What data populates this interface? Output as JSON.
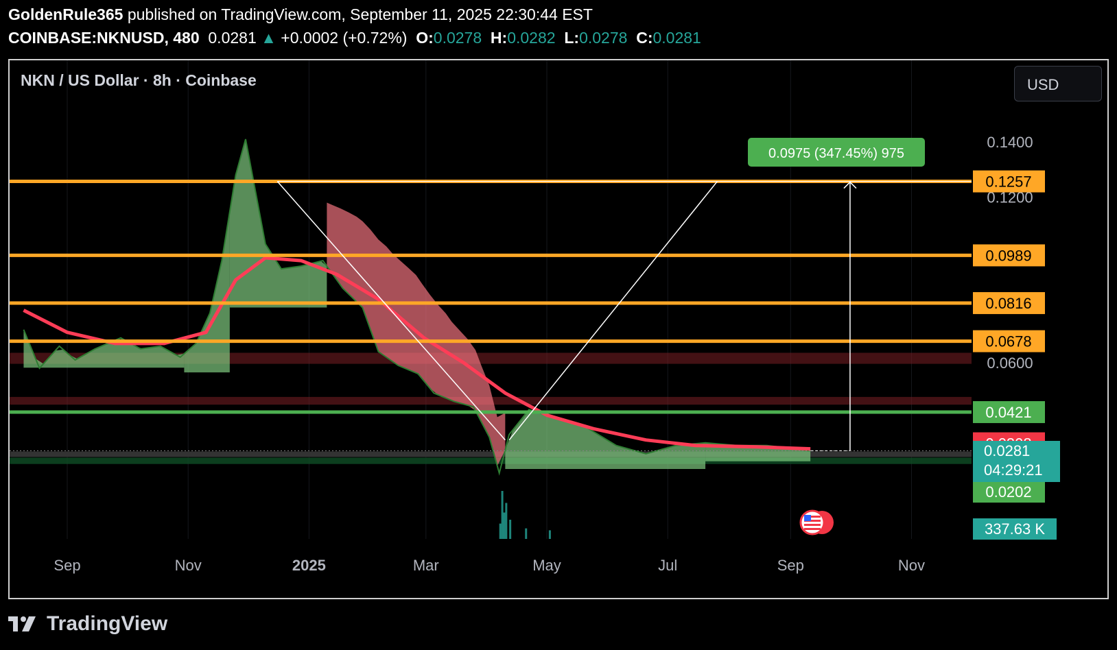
{
  "header": {
    "author": "GoldenRule365",
    "published": "published on TradingView.com, September 11, 2025 22:30:44 EST",
    "symbol": "COINBASE:NKNUSD, 480",
    "last": "0.0281",
    "change": "+0.0002 (+0.72%)",
    "o_label": "O:",
    "o": "0.0278",
    "h_label": "H:",
    "h": "0.0282",
    "l_label": "L:",
    "l": "0.0278",
    "c_label": "C:",
    "c": "0.0281"
  },
  "symbol_title": "NKN / US Dollar · 8h · Coinbase",
  "currency_button": "USD",
  "footer": {
    "brand": "TradingView"
  },
  "colors": {
    "bg": "#000000",
    "orange": "#ffa726",
    "green_line": "#4caf50",
    "red_band": "#7a1f24",
    "ma": "#ff3d57",
    "teal": "#26a69a",
    "cloud_green": "#7fc97f",
    "cloud_red": "#f0727e"
  },
  "chart_data": {
    "type": "line",
    "title": "NKN / US Dollar · 8h · Coinbase",
    "x_ticks": [
      "Sep",
      "Nov",
      "2025",
      "Mar",
      "May",
      "Jul",
      "Sep",
      "Nov"
    ],
    "y_ticks": [
      "0.1400",
      "0.1200",
      "0.0600"
    ],
    "ylim": [
      0.017,
      0.148
    ],
    "series": [
      {
        "role": "price",
        "points": [
          [
            "2024-08-10",
            0.072
          ],
          [
            "2024-08-18",
            0.058
          ],
          [
            "2024-08-28",
            0.066
          ],
          [
            "2024-09-05",
            0.061
          ],
          [
            "2024-09-15",
            0.065
          ],
          [
            "2024-09-28",
            0.069
          ],
          [
            "2024-10-08",
            0.065
          ],
          [
            "2024-10-18",
            0.066
          ],
          [
            "2024-10-28",
            0.062
          ],
          [
            "2024-11-05",
            0.067
          ],
          [
            "2024-11-12",
            0.078
          ],
          [
            "2024-11-18",
            0.097
          ],
          [
            "2024-11-25",
            0.128
          ],
          [
            "2024-11-30",
            0.141
          ],
          [
            "2024-12-05",
            0.122
          ],
          [
            "2024-12-10",
            0.103
          ],
          [
            "2024-12-18",
            0.094
          ],
          [
            "2024-12-28",
            0.095
          ],
          [
            "2025-01-08",
            0.097
          ],
          [
            "2025-01-18",
            0.087
          ],
          [
            "2025-01-28",
            0.08
          ],
          [
            "2025-02-05",
            0.064
          ],
          [
            "2025-02-15",
            0.059
          ],
          [
            "2025-02-25",
            0.056
          ],
          [
            "2025-03-05",
            0.049
          ],
          [
            "2025-03-15",
            0.046
          ],
          [
            "2025-03-25",
            0.044
          ],
          [
            "2025-04-02",
            0.033
          ],
          [
            "2025-04-07",
            0.02
          ],
          [
            "2025-04-12",
            0.034
          ],
          [
            "2025-04-22",
            0.043
          ],
          [
            "2025-05-05",
            0.04
          ],
          [
            "2025-05-20",
            0.037
          ],
          [
            "2025-06-05",
            0.03
          ],
          [
            "2025-06-20",
            0.027
          ],
          [
            "2025-07-05",
            0.03
          ],
          [
            "2025-07-20",
            0.031
          ],
          [
            "2025-08-05",
            0.03
          ],
          [
            "2025-08-20",
            0.03
          ],
          [
            "2025-09-11",
            0.0281
          ]
        ]
      },
      {
        "role": "moving-average",
        "points": [
          [
            "2024-08-10",
            0.079
          ],
          [
            "2024-09-01",
            0.071
          ],
          [
            "2024-09-25",
            0.067
          ],
          [
            "2024-10-20",
            0.067
          ],
          [
            "2024-11-10",
            0.071
          ],
          [
            "2024-11-25",
            0.09
          ],
          [
            "2024-12-10",
            0.098
          ],
          [
            "2024-12-28",
            0.097
          ],
          [
            "2025-01-15",
            0.092
          ],
          [
            "2025-02-05",
            0.083
          ],
          [
            "2025-02-28",
            0.069
          ],
          [
            "2025-03-20",
            0.06
          ],
          [
            "2025-04-10",
            0.049
          ],
          [
            "2025-05-01",
            0.041
          ],
          [
            "2025-05-25",
            0.036
          ],
          [
            "2025-06-20",
            0.032
          ],
          [
            "2025-07-15",
            0.03
          ],
          [
            "2025-08-15",
            0.0295
          ],
          [
            "2025-09-11",
            0.0288
          ]
        ]
      }
    ],
    "horizontal_levels": [
      {
        "label": "0.1257",
        "value": 0.1257,
        "color": "#ffa726"
      },
      {
        "label": "0.0989",
        "value": 0.0989,
        "color": "#ffa726"
      },
      {
        "label": "0.0816",
        "value": 0.0816,
        "color": "#ffa726"
      },
      {
        "label": "0.0678",
        "value": 0.0678,
        "color": "#ffa726"
      },
      {
        "label": "0.0421",
        "value": 0.0421,
        "color": "#4caf50"
      },
      {
        "label": "0.0308",
        "value": 0.0308,
        "color": "#f23645"
      },
      {
        "label": "0.0202",
        "value": 0.0202,
        "color": "#4caf50"
      }
    ],
    "zones": [
      {
        "from": 0.0596,
        "to": 0.0636,
        "color": "red"
      },
      {
        "from": 0.0448,
        "to": 0.0476,
        "color": "red"
      },
      {
        "from": 0.0233,
        "to": 0.0256,
        "color": "green"
      }
    ],
    "pattern_lines": [
      [
        [
          "2024-12-16",
          0.1257
        ],
        [
          "2025-04-10",
          0.032
        ]
      ],
      [
        [
          "2025-04-12",
          0.032
        ],
        [
          "2025-07-26",
          0.1257
        ]
      ]
    ],
    "measure": {
      "label": "0.0975 (347.45%) 975",
      "from": 0.0281,
      "to": 0.1257,
      "date": "2025-10-01"
    },
    "last_price": {
      "value": 0.0281,
      "label": "0.0281",
      "countdown": "04:29:21"
    },
    "volume_label": "337.63 K",
    "volume_spikes": [
      [
        "2025-04-07",
        0.32
      ],
      [
        "2025-04-08",
        1.0
      ],
      [
        "2025-04-09",
        0.55
      ],
      [
        "2025-04-10",
        0.75
      ],
      [
        "2025-04-12",
        0.4
      ],
      [
        "2025-04-20",
        0.22
      ],
      [
        "2025-05-02",
        0.18
      ]
    ]
  }
}
